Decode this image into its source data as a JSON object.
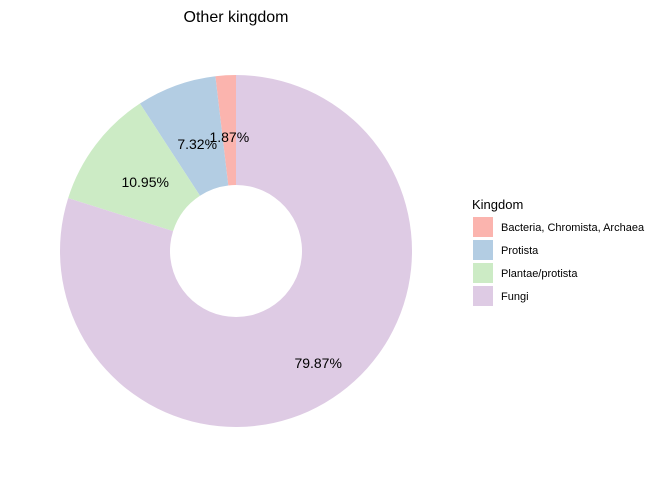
{
  "chart_data": {
    "type": "pie",
    "title": "Other kingdom",
    "donut": true,
    "legend": {
      "title": "Kingdom",
      "position": "right"
    },
    "categories": [
      "Bacteria, Chromista, Archaea",
      "Protista",
      "Plantae/protista",
      "Fungi"
    ],
    "values": [
      1.87,
      7.32,
      10.95,
      79.87
    ],
    "labels": [
      "1.87%",
      "7.32%",
      "10.95%",
      "79.87%"
    ],
    "colors": [
      "#FBB4AE",
      "#B3CDE3",
      "#CCEBC5",
      "#DECBE4"
    ]
  }
}
